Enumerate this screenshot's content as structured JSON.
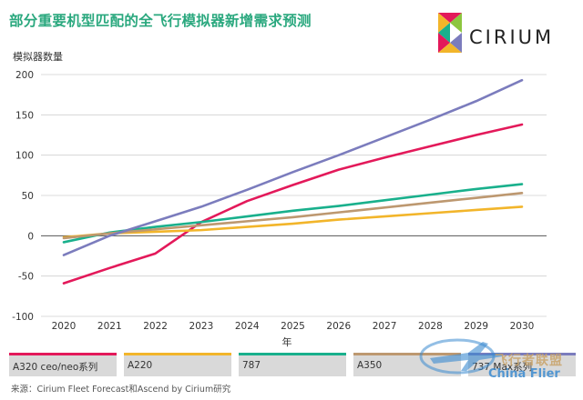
{
  "header": {
    "title": "部分重要机型匹配的全飞行模拟器新增需求预测",
    "logo_text": "CIRIUM"
  },
  "footer": {
    "source": "来源：Cirium Fleet Forecast和Ascend by Cirium研究"
  },
  "watermark": {
    "cn": "飞行者联盟",
    "en": "China Flier"
  },
  "chart_data": {
    "type": "line",
    "title": "部分重要机型匹配的全飞行模拟器新增需求预测",
    "ylabel": "模拟器数量",
    "xlabel": "年",
    "x": [
      2020,
      2021,
      2022,
      2023,
      2024,
      2025,
      2026,
      2027,
      2028,
      2029,
      2030
    ],
    "ylim": [
      -100,
      200
    ],
    "yticks": [
      -100,
      -50,
      0,
      50,
      100,
      150,
      200
    ],
    "grid": "horizontal",
    "series": [
      {
        "name": "A320 ceo/neo系列",
        "color": "#e3195a",
        "values": [
          -59,
          -40,
          -22,
          17,
          43,
          63,
          82,
          97,
          111,
          125,
          138
        ]
      },
      {
        "name": "A220",
        "color": "#f2b52a",
        "values": [
          -2,
          3,
          5,
          7,
          11,
          15,
          20,
          24,
          28,
          32,
          36
        ]
      },
      {
        "name": "787",
        "color": "#19b08c",
        "values": [
          -8,
          4,
          11,
          17,
          24,
          31,
          37,
          44,
          51,
          58,
          64
        ]
      },
      {
        "name": "A350",
        "color": "#bd9870",
        "values": [
          -3,
          3,
          8,
          13,
          18,
          23,
          29,
          35,
          41,
          47,
          53
        ]
      },
      {
        "name": "737 Max系列",
        "color": "#7b7cbd",
        "values": [
          -24,
          0,
          18,
          36,
          57,
          79,
          100,
          122,
          144,
          167,
          193
        ]
      }
    ]
  }
}
